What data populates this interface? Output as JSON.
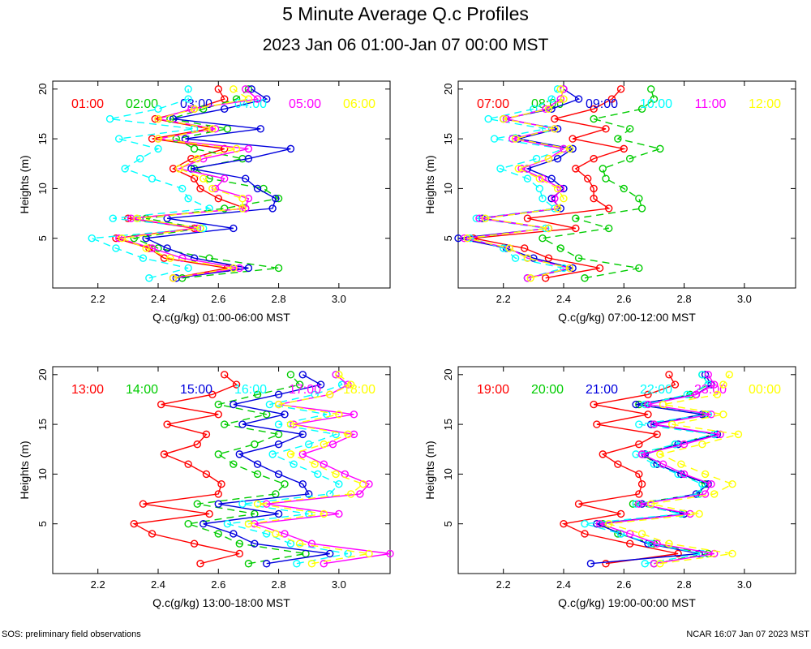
{
  "page": {
    "title": "5 Minute Average Q.c Profiles",
    "subtitle": "2023 Jan 06 01:00-Jan 07 00:00 MST",
    "footer_left": "SOS: preliminary field observations",
    "footer_right": "NCAR 16:07 Jan 07 2023 MST"
  },
  "chart_data": [
    {
      "type": "line",
      "title": "",
      "xlabel": "Q.c(g/kg) 01:00-06:00 MST",
      "ylabel": "Heights (m)",
      "xlim": [
        2.05,
        3.17
      ],
      "ylim": [
        0,
        20.8
      ],
      "xticks": [
        2.2,
        2.4,
        2.6,
        2.8,
        3.0
      ],
      "yticks": [
        5,
        10,
        15,
        20
      ],
      "y": [
        1,
        2,
        3,
        4,
        5,
        6,
        7,
        8,
        9,
        10,
        11,
        12,
        13,
        14,
        15,
        16,
        17,
        18,
        19,
        20
      ],
      "series": [
        {
          "name": "01:00",
          "color": "#ff0000",
          "dashed": false,
          "x": [
            2.45,
            2.63,
            2.42,
            2.37,
            2.26,
            2.52,
            2.3,
            2.69,
            2.6,
            2.54,
            2.52,
            2.45,
            2.51,
            2.62,
            2.38,
            2.57,
            2.39,
            2.52,
            2.62,
            2.6
          ]
        },
        {
          "name": "02:00",
          "color": "#00cc00",
          "dashed": true,
          "x": [
            2.48,
            2.8,
            2.57,
            2.4,
            2.32,
            2.54,
            2.36,
            2.62,
            2.8,
            2.75,
            2.57,
            2.52,
            2.68,
            2.52,
            2.46,
            2.63,
            2.44,
            2.55,
            2.66,
            2.7
          ]
        },
        {
          "name": "03:00",
          "color": "#0000dd",
          "dashed": false,
          "x": [
            2.46,
            2.7,
            2.52,
            2.43,
            2.36,
            2.65,
            2.43,
            2.78,
            2.79,
            2.73,
            2.69,
            2.51,
            2.7,
            2.84,
            2.49,
            2.74,
            2.45,
            2.62,
            2.76,
            2.71
          ]
        },
        {
          "name": "04:00",
          "color": "#00ffff",
          "dashed": true,
          "x": [
            2.37,
            2.5,
            2.35,
            2.26,
            2.18,
            2.55,
            2.25,
            2.57,
            2.5,
            2.48,
            2.38,
            2.29,
            2.34,
            2.4,
            2.27,
            2.52,
            2.24,
            2.4,
            2.5,
            2.5
          ]
        },
        {
          "name": "05:00",
          "color": "#ff00ff",
          "dashed": false,
          "x": [
            2.45,
            2.67,
            2.48,
            2.38,
            2.27,
            2.53,
            2.31,
            2.69,
            2.7,
            2.59,
            2.62,
            2.47,
            2.55,
            2.7,
            2.4,
            2.59,
            2.4,
            2.51,
            2.73,
            2.69
          ]
        },
        {
          "name": "06:00",
          "color": "#ffff00",
          "dashed": true,
          "x": [
            2.45,
            2.65,
            2.44,
            2.36,
            2.28,
            2.54,
            2.33,
            2.68,
            2.68,
            2.58,
            2.55,
            2.47,
            2.53,
            2.66,
            2.4,
            2.58,
            2.4,
            2.52,
            2.7,
            2.65
          ]
        }
      ]
    },
    {
      "type": "line",
      "title": "",
      "xlabel": "Q.c(g/kg) 07:00-12:00 MST",
      "ylabel": "Heights (m)",
      "xlim": [
        2.05,
        3.17
      ],
      "ylim": [
        0,
        20.8
      ],
      "xticks": [
        2.2,
        2.4,
        2.6,
        2.8,
        3.0
      ],
      "yticks": [
        5,
        10,
        15,
        20
      ],
      "y": [
        1,
        2,
        3,
        4,
        5,
        6,
        7,
        8,
        9,
        10,
        11,
        12,
        13,
        14,
        15,
        16,
        17,
        18,
        19,
        20
      ],
      "series": [
        {
          "name": "07:00",
          "color": "#ff0000",
          "dashed": false,
          "x": [
            2.34,
            2.52,
            2.35,
            2.27,
            2.1,
            2.44,
            2.28,
            2.55,
            2.5,
            2.5,
            2.48,
            2.44,
            2.5,
            2.6,
            2.43,
            2.54,
            2.37,
            2.5,
            2.56,
            2.59
          ]
        },
        {
          "name": "08:00",
          "color": "#00cc00",
          "dashed": true,
          "x": [
            2.47,
            2.65,
            2.45,
            2.39,
            2.33,
            2.55,
            2.44,
            2.66,
            2.65,
            2.6,
            2.54,
            2.53,
            2.62,
            2.72,
            2.58,
            2.62,
            2.5,
            2.66,
            2.7,
            2.69
          ]
        },
        {
          "name": "09:00",
          "color": "#0000dd",
          "dashed": false,
          "x": [
            2.28,
            2.43,
            2.3,
            2.21,
            2.05,
            2.35,
            2.13,
            2.39,
            2.36,
            2.4,
            2.36,
            2.28,
            2.38,
            2.43,
            2.25,
            2.38,
            2.2,
            2.36,
            2.45,
            2.4
          ]
        },
        {
          "name": "10:00",
          "color": "#00ffff",
          "dashed": true,
          "x": [
            2.28,
            2.4,
            2.24,
            2.2,
            2.09,
            2.34,
            2.11,
            2.37,
            2.33,
            2.32,
            2.28,
            2.19,
            2.31,
            2.4,
            2.17,
            2.34,
            2.15,
            2.3,
            2.36,
            2.38
          ]
        },
        {
          "name": "11:00",
          "color": "#ff00ff",
          "dashed": false,
          "x": [
            2.28,
            2.42,
            2.28,
            2.22,
            2.07,
            2.35,
            2.12,
            2.38,
            2.37,
            2.39,
            2.33,
            2.26,
            2.35,
            2.4,
            2.23,
            2.37,
            2.21,
            2.34,
            2.39,
            2.4
          ]
        },
        {
          "name": "12:00",
          "color": "#ffff00",
          "dashed": true,
          "x": [
            2.29,
            2.42,
            2.28,
            2.22,
            2.08,
            2.35,
            2.14,
            2.38,
            2.4,
            2.38,
            2.32,
            2.25,
            2.35,
            2.42,
            2.24,
            2.37,
            2.2,
            2.35,
            2.4,
            2.39
          ]
        }
      ]
    },
    {
      "type": "line",
      "title": "",
      "xlabel": "Q.c(g/kg) 13:00-18:00 MST",
      "ylabel": "Heights (m)",
      "xlim": [
        2.05,
        3.17
      ],
      "ylim": [
        0,
        20.8
      ],
      "xticks": [
        2.2,
        2.4,
        2.6,
        2.8,
        3.0
      ],
      "yticks": [
        5,
        10,
        15,
        20
      ],
      "y": [
        1,
        2,
        3,
        4,
        5,
        6,
        7,
        8,
        9,
        10,
        11,
        12,
        13,
        14,
        15,
        16,
        17,
        18,
        19,
        20
      ],
      "series": [
        {
          "name": "13:00",
          "color": "#ff0000",
          "dashed": false,
          "x": [
            2.54,
            2.67,
            2.52,
            2.38,
            2.32,
            2.57,
            2.35,
            2.6,
            2.61,
            2.56,
            2.5,
            2.42,
            2.53,
            2.56,
            2.43,
            2.6,
            2.41,
            2.58,
            2.66,
            2.62
          ]
        },
        {
          "name": "14:00",
          "color": "#00cc00",
          "dashed": true,
          "x": [
            2.7,
            2.89,
            2.67,
            2.6,
            2.5,
            2.72,
            2.53,
            2.79,
            2.82,
            2.73,
            2.65,
            2.6,
            2.72,
            2.8,
            2.62,
            2.76,
            2.6,
            2.73,
            2.87,
            2.84
          ]
        },
        {
          "name": "15:00",
          "color": "#0000dd",
          "dashed": false,
          "x": [
            2.76,
            2.97,
            2.72,
            2.65,
            2.55,
            2.8,
            2.6,
            2.9,
            2.88,
            2.8,
            2.73,
            2.67,
            2.8,
            2.88,
            2.68,
            2.82,
            2.65,
            2.8,
            2.94,
            2.88
          ]
        },
        {
          "name": "16:00",
          "color": "#00ffff",
          "dashed": true,
          "x": [
            2.86,
            3.03,
            2.84,
            2.76,
            2.63,
            2.9,
            2.68,
            2.97,
            3.0,
            2.93,
            2.85,
            2.78,
            2.9,
            2.99,
            2.8,
            2.96,
            2.77,
            2.92,
            3.01,
            2.99
          ]
        },
        {
          "name": "17:00",
          "color": "#ff00ff",
          "dashed": false,
          "x": [
            2.95,
            3.17,
            2.91,
            2.82,
            2.72,
            3.0,
            2.76,
            3.07,
            3.1,
            3.02,
            2.95,
            2.88,
            2.98,
            3.05,
            2.85,
            3.05,
            2.8,
            2.97,
            3.03,
            2.99
          ]
        },
        {
          "name": "18:00",
          "color": "#ffff00",
          "dashed": true,
          "x": [
            2.91,
            3.1,
            2.87,
            2.79,
            2.7,
            2.95,
            2.73,
            3.04,
            3.08,
            2.99,
            2.92,
            2.84,
            2.95,
            3.03,
            2.84,
            3.0,
            2.8,
            2.97,
            3.04,
            3.0
          ]
        }
      ]
    },
    {
      "type": "line",
      "title": "",
      "xlabel": "Q.c(g/kg) 19:00-00:00 MST",
      "ylabel": "Heights (m)",
      "xlim": [
        2.05,
        3.17
      ],
      "ylim": [
        0,
        20.8
      ],
      "xticks": [
        2.2,
        2.4,
        2.6,
        2.8,
        3.0
      ],
      "yticks": [
        5,
        10,
        15,
        20
      ],
      "y": [
        1,
        2,
        3,
        4,
        5,
        6,
        7,
        8,
        9,
        10,
        11,
        12,
        13,
        14,
        15,
        16,
        17,
        18,
        19,
        20
      ],
      "series": [
        {
          "name": "19:00",
          "color": "#ff0000",
          "dashed": false,
          "x": [
            2.54,
            2.78,
            2.62,
            2.47,
            2.4,
            2.59,
            2.45,
            2.65,
            2.66,
            2.65,
            2.58,
            2.53,
            2.65,
            2.71,
            2.51,
            2.68,
            2.5,
            2.68,
            2.77,
            2.75
          ]
        },
        {
          "name": "20:00",
          "color": "#00cc00",
          "dashed": true,
          "x": [
            2.7,
            2.88,
            2.7,
            2.58,
            2.53,
            2.8,
            2.63,
            2.85,
            2.87,
            2.79,
            2.71,
            2.66,
            2.77,
            2.9,
            2.7,
            2.87,
            2.65,
            2.82,
            2.88,
            2.86
          ]
        },
        {
          "name": "21:00",
          "color": "#0000dd",
          "dashed": false,
          "x": [
            2.49,
            2.85,
            2.68,
            2.59,
            2.51,
            2.8,
            2.66,
            2.84,
            2.88,
            2.79,
            2.71,
            2.67,
            2.78,
            2.91,
            2.69,
            2.86,
            2.64,
            2.84,
            2.89,
            2.87
          ]
        },
        {
          "name": "22:00",
          "color": "#00ffff",
          "dashed": true,
          "x": [
            2.67,
            2.86,
            2.69,
            2.59,
            2.47,
            2.79,
            2.64,
            2.85,
            2.86,
            2.78,
            2.7,
            2.64,
            2.77,
            2.9,
            2.65,
            2.88,
            2.67,
            2.81,
            2.88,
            2.86
          ]
        },
        {
          "name": "23:00",
          "color": "#ff00ff",
          "dashed": false,
          "x": [
            2.7,
            2.9,
            2.71,
            2.62,
            2.52,
            2.82,
            2.65,
            2.87,
            2.89,
            2.8,
            2.73,
            2.66,
            2.8,
            2.92,
            2.7,
            2.89,
            2.68,
            2.84,
            2.9,
            2.88
          ]
        },
        {
          "name": "00:00",
          "color": "#ffff00",
          "dashed": true,
          "x": [
            2.72,
            2.96,
            2.75,
            2.66,
            2.55,
            2.85,
            2.69,
            2.9,
            2.96,
            2.87,
            2.79,
            2.72,
            2.86,
            2.98,
            2.76,
            2.93,
            2.73,
            2.91,
            2.93,
            2.95
          ]
        }
      ]
    }
  ]
}
